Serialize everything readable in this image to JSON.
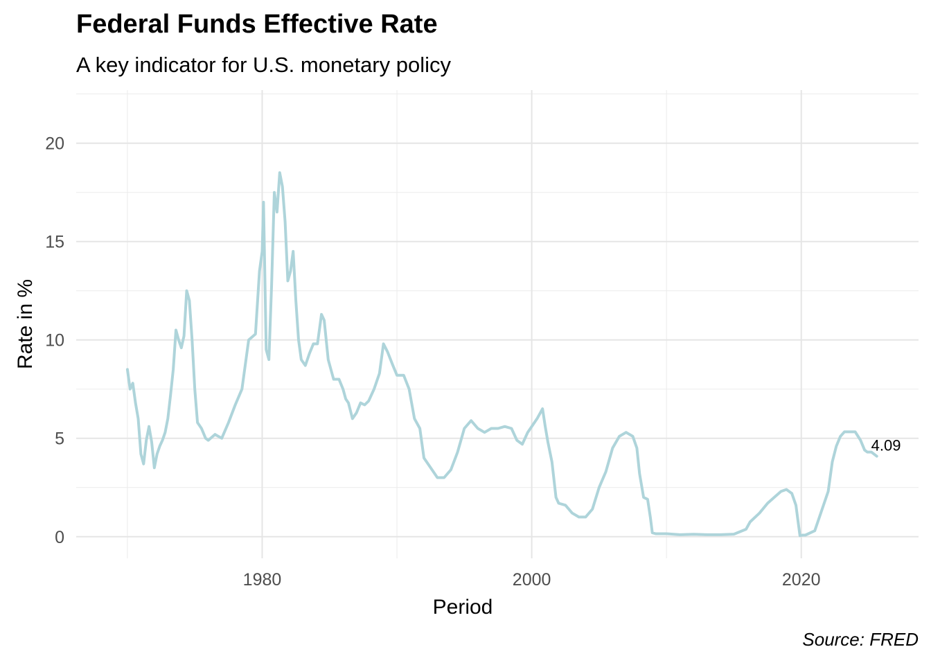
{
  "chart_data": {
    "type": "line",
    "title": "Federal Funds Effective Rate",
    "subtitle": "A key indicator for U.S. monetary policy",
    "caption": "Source: FRED",
    "xlabel": "Period",
    "ylabel": "Rate in %",
    "x_ticks": [
      1980,
      2000,
      2020
    ],
    "y_ticks": [
      0,
      5,
      10,
      15,
      20
    ],
    "xlim": [
      1966.2,
      2028.7
    ],
    "ylim": [
      -1.1,
      22.7
    ],
    "grid": true,
    "line_color": "#aed4da",
    "end_label": "4.09",
    "series": [
      {
        "name": "",
        "x": [
          1970.0,
          1970.2,
          1970.4,
          1970.6,
          1970.8,
          1971.0,
          1971.2,
          1971.4,
          1971.6,
          1971.8,
          1972.0,
          1972.2,
          1972.4,
          1972.6,
          1972.8,
          1973.0,
          1973.2,
          1973.4,
          1973.6,
          1973.8,
          1974.0,
          1974.2,
          1974.4,
          1974.6,
          1974.8,
          1975.0,
          1975.2,
          1975.5,
          1975.8,
          1976.0,
          1976.5,
          1977.0,
          1977.5,
          1978.0,
          1978.5,
          1979.0,
          1979.5,
          1979.8,
          1980.0,
          1980.1,
          1980.3,
          1980.5,
          1980.7,
          1980.9,
          1981.1,
          1981.3,
          1981.5,
          1981.7,
          1981.9,
          1982.1,
          1982.3,
          1982.5,
          1982.7,
          1982.9,
          1983.2,
          1983.5,
          1983.8,
          1984.1,
          1984.4,
          1984.6,
          1984.9,
          1985.3,
          1985.7,
          1986.0,
          1986.2,
          1986.4,
          1986.7,
          1987.0,
          1987.3,
          1987.6,
          1987.9,
          1988.3,
          1988.7,
          1989.0,
          1989.3,
          1989.7,
          1990.0,
          1990.5,
          1990.9,
          1991.3,
          1991.7,
          1992.0,
          1992.5,
          1993.0,
          1993.5,
          1994.0,
          1994.5,
          1995.0,
          1995.5,
          1996.0,
          1996.5,
          1997.0,
          1997.5,
          1998.0,
          1998.5,
          1998.9,
          1999.3,
          1999.7,
          2000.0,
          2000.4,
          2000.8,
          2001.0,
          2001.2,
          2001.5,
          2001.8,
          2002.0,
          2002.5,
          2003.0,
          2003.5,
          2004.0,
          2004.5,
          2005.0,
          2005.5,
          2006.0,
          2006.5,
          2007.0,
          2007.5,
          2007.8,
          2008.0,
          2008.3,
          2008.6,
          2008.8,
          2008.95,
          2009.2,
          2010.0,
          2011.0,
          2012.0,
          2013.0,
          2014.0,
          2015.0,
          2015.9,
          2016.2,
          2016.9,
          2017.5,
          2018.0,
          2018.5,
          2018.9,
          2019.3,
          2019.6,
          2019.9,
          2020.1,
          2020.3,
          2021.0,
          2022.0,
          2022.3,
          2022.6,
          2022.9,
          2023.2,
          2023.6,
          2024.0,
          2024.4,
          2024.7,
          2024.9,
          2025.2,
          2025.6
        ],
        "values": [
          8.5,
          7.5,
          7.8,
          6.8,
          6.0,
          4.2,
          3.7,
          4.9,
          5.6,
          4.8,
          3.5,
          4.2,
          4.6,
          4.9,
          5.3,
          6.0,
          7.2,
          8.5,
          10.5,
          10.0,
          9.6,
          10.2,
          12.5,
          12.0,
          10.0,
          7.5,
          5.8,
          5.5,
          5.0,
          4.9,
          5.2,
          5.0,
          5.8,
          6.7,
          7.5,
          10.0,
          10.3,
          13.5,
          14.5,
          17.0,
          9.5,
          9.0,
          12.8,
          17.5,
          16.5,
          18.5,
          17.8,
          16.0,
          13.0,
          13.5,
          14.5,
          12.0,
          10.0,
          9.0,
          8.7,
          9.3,
          9.8,
          9.8,
          11.3,
          11.0,
          9.0,
          8.0,
          8.0,
          7.5,
          7.0,
          6.8,
          6.0,
          6.3,
          6.8,
          6.7,
          6.9,
          7.5,
          8.3,
          9.8,
          9.4,
          8.7,
          8.2,
          8.2,
          7.5,
          6.0,
          5.5,
          4.0,
          3.5,
          3.0,
          3.0,
          3.4,
          4.3,
          5.5,
          5.9,
          5.5,
          5.3,
          5.5,
          5.5,
          5.6,
          5.5,
          4.9,
          4.7,
          5.3,
          5.6,
          6.0,
          6.5,
          5.6,
          4.8,
          3.8,
          2.0,
          1.7,
          1.6,
          1.2,
          1.0,
          1.0,
          1.4,
          2.5,
          3.3,
          4.5,
          5.1,
          5.3,
          5.1,
          4.5,
          3.2,
          2.0,
          1.9,
          1.0,
          0.2,
          0.15,
          0.15,
          0.1,
          0.12,
          0.1,
          0.1,
          0.13,
          0.38,
          0.75,
          1.2,
          1.7,
          2.0,
          2.3,
          2.4,
          2.2,
          1.6,
          0.05,
          0.08,
          0.08,
          0.3,
          2.3,
          3.8,
          4.6,
          5.1,
          5.33,
          5.33,
          5.33,
          4.9,
          4.4,
          4.3,
          4.3,
          4.09
        ]
      }
    ]
  }
}
